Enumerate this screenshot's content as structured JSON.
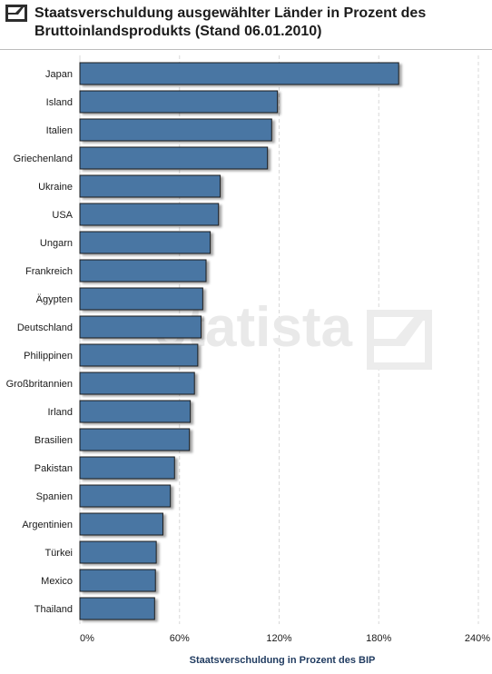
{
  "header": {
    "title": "Staatsverschuldung ausgewählter Länder in Prozent des Bruttoinlandsprodukts (Stand 06.01.2010)",
    "logo_icon": "statista-logo-icon"
  },
  "watermark": {
    "text": "statista"
  },
  "colors": {
    "bar_fill": "#4a76a3",
    "bar_stroke": "#1b1b1b",
    "grid": "#d8d8d8",
    "axis_title": "#1f3a5f"
  },
  "chart_data": {
    "type": "bar",
    "orientation": "horizontal",
    "categories": [
      "Japan",
      "Island",
      "Italien",
      "Griechenland",
      "Ukraine",
      "USA",
      "Ungarn",
      "Frankreich",
      "Ägypten",
      "Deutschland",
      "Philippinen",
      "Großbritannien",
      "Irland",
      "Brasilien",
      "Pakistan",
      "Spanien",
      "Argentinien",
      "Türkei",
      "Mexico",
      "Thailand"
    ],
    "values": [
      192,
      119,
      115.5,
      113,
      84.5,
      83.5,
      78.5,
      76,
      74,
      73,
      71,
      69,
      66.5,
      66,
      57,
      54.5,
      50,
      46,
      45.5,
      45
    ],
    "xlim": [
      0,
      240
    ],
    "xticks": [
      "0%",
      "60%",
      "120%",
      "180%",
      "240%"
    ],
    "xtick_values": [
      0,
      60,
      120,
      180,
      240
    ],
    "xlabel": "Staatsverschuldung in Prozent des BIP",
    "ylabel": "",
    "grid": "vertical dashed",
    "legend": "none"
  }
}
